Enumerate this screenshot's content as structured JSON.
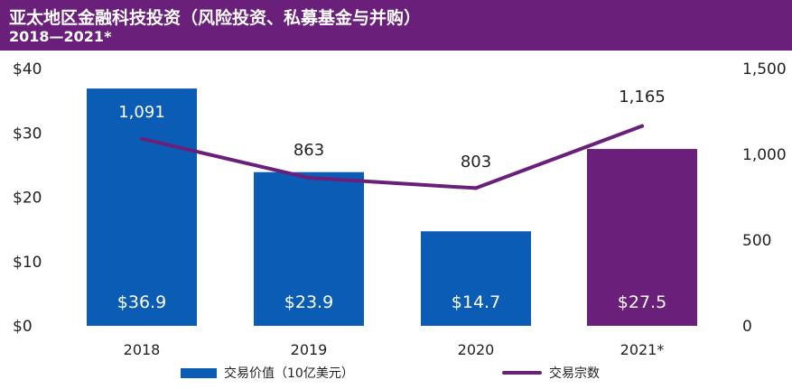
{
  "header": {
    "title": "亚太地区金融科技投资（风险投资、私募基金与并购）",
    "subtitle": "2018—2021*"
  },
  "colors": {
    "header_bg": "#6a1f7a",
    "bar_blue": "#0b5cb5",
    "bar_purple": "#6a1f7a",
    "line": "#6a1f7a"
  },
  "chart_data": {
    "type": "bar",
    "categories": [
      "2018",
      "2019",
      "2020",
      "2021*"
    ],
    "series": [
      {
        "name": "交易价值（10亿美元）",
        "type": "bar",
        "axis": "left",
        "values": [
          36.9,
          23.9,
          14.7,
          27.5
        ],
        "labels": [
          "$36.9",
          "$23.9",
          "$14.7",
          "$27.5"
        ]
      },
      {
        "name": "交易宗数",
        "type": "line",
        "axis": "right",
        "values": [
          1091,
          863,
          803,
          1165
        ],
        "labels": [
          "1,091",
          "863",
          "803",
          "1,165"
        ]
      }
    ],
    "y_left": {
      "ticks": [
        "$0",
        "$10",
        "$20",
        "$30",
        "$40"
      ],
      "ylim": [
        0,
        40
      ]
    },
    "y_right": {
      "ticks": [
        "0",
        "500",
        "1,000",
        "1,500"
      ],
      "ylim": [
        0,
        1500
      ]
    },
    "highlight_category": "2021*",
    "legend_position": "bottom"
  }
}
